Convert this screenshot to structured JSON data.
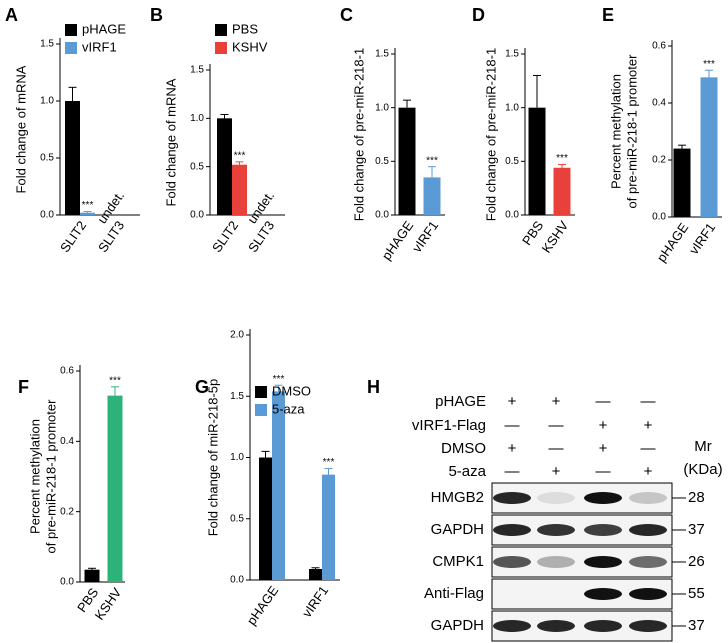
{
  "chart_data": [
    {
      "panel": "A",
      "type": "bar",
      "y_label": "Fold change of mRNA",
      "categories": [
        "SLIT2",
        "SLIT3"
      ],
      "series": [
        {
          "name": "pHAGE",
          "color": "#000000",
          "values": [
            1.0,
            null
          ],
          "errors": [
            0.12,
            null
          ]
        },
        {
          "name": "vIRF1",
          "color": "#5b9bd5",
          "values": [
            0.02,
            null
          ],
          "errors": [
            0.01,
            null
          ],
          "annotations": [
            "***",
            null
          ]
        }
      ],
      "category_annotations": [
        null,
        "undet."
      ],
      "ylim": [
        0,
        1.5
      ],
      "yticks": [
        {
          "value": 0,
          "label": "0.0"
        },
        {
          "value": 0.5,
          "label": "0.5"
        },
        {
          "value": 1,
          "label": "1.0"
        },
        {
          "value": 1.5,
          "label": "1.5"
        }
      ]
    },
    {
      "panel": "B",
      "type": "bar",
      "y_label": "Fold change of mRNA",
      "categories": [
        "SLIT2",
        "SLIT3"
      ],
      "series": [
        {
          "name": "PBS",
          "color": "#000000",
          "values": [
            1.0,
            null
          ],
          "errors": [
            0.04,
            null
          ]
        },
        {
          "name": "KSHV",
          "color": "#e8403a",
          "values": [
            0.52,
            null
          ],
          "errors": [
            0.03,
            null
          ],
          "annotations": [
            "***",
            null
          ]
        }
      ],
      "category_annotations": [
        null,
        "undet."
      ],
      "ylim": [
        0,
        1.5
      ],
      "yticks": [
        {
          "value": 0,
          "label": "0.0"
        },
        {
          "value": 0.5,
          "label": "0.5"
        },
        {
          "value": 1,
          "label": "1.0"
        },
        {
          "value": 1.5,
          "label": "1.5"
        }
      ]
    },
    {
      "panel": "C",
      "type": "bar",
      "y_label": "Fold change of pre-miR-218-1",
      "categories": [
        "pHAGE",
        "vIRF1"
      ],
      "values": [
        1.0,
        0.35
      ],
      "errors": [
        0.07,
        0.1
      ],
      "colors": [
        "#000000",
        "#5b9bd5"
      ],
      "annotations": [
        null,
        "***"
      ],
      "ylim": [
        0,
        1.5
      ],
      "yticks": [
        {
          "value": 0,
          "label": "0.0"
        },
        {
          "value": 0.5,
          "label": "0.5"
        },
        {
          "value": 1,
          "label": "1.0"
        },
        {
          "value": 1.5,
          "label": "1.5"
        }
      ]
    },
    {
      "panel": "D",
      "type": "bar",
      "y_label": "Fold change of pre-miR-218-1",
      "categories": [
        "PBS",
        "KSHV"
      ],
      "values": [
        1.0,
        0.44
      ],
      "errors": [
        0.3,
        0.03
      ],
      "colors": [
        "#000000",
        "#e8403a"
      ],
      "annotations": [
        null,
        "***"
      ],
      "ylim": [
        0,
        1.5
      ],
      "yticks": [
        {
          "value": 0,
          "label": "0.0"
        },
        {
          "value": 0.5,
          "label": "0.5"
        },
        {
          "value": 1,
          "label": "1.0"
        },
        {
          "value": 1.5,
          "label": "1.5"
        }
      ]
    },
    {
      "panel": "E",
      "type": "bar",
      "y_label": [
        "Percent methylation",
        "of pre-miR-218-1 promoter"
      ],
      "categories": [
        "pHAGE",
        "vIRF1"
      ],
      "values": [
        0.24,
        0.49
      ],
      "errors": [
        0.012,
        0.025
      ],
      "colors": [
        "#000000",
        "#5b9bd5"
      ],
      "annotations": [
        null,
        "***"
      ],
      "ylim": [
        0,
        0.6
      ],
      "yticks": [
        {
          "value": 0,
          "label": "0.0"
        },
        {
          "value": 0.2,
          "label": "0.2"
        },
        {
          "value": 0.4,
          "label": "0.4"
        },
        {
          "value": 0.6,
          "label": "0.6"
        }
      ]
    },
    {
      "panel": "F",
      "type": "bar",
      "y_label": [
        "Percent methylation",
        "of pre-miR-218-1 promoter"
      ],
      "categories": [
        "PBS",
        "KSHV"
      ],
      "values": [
        0.035,
        0.53
      ],
      "errors": [
        0.004,
        0.025
      ],
      "colors": [
        "#000000",
        "#2db37a"
      ],
      "annotations": [
        null,
        "***"
      ],
      "ylim": [
        0,
        0.6
      ],
      "yticks": [
        {
          "value": 0,
          "label": "0.0"
        },
        {
          "value": 0.2,
          "label": "0.2"
        },
        {
          "value": 0.4,
          "label": "0.4"
        },
        {
          "value": 0.6,
          "label": "0.6"
        }
      ]
    },
    {
      "panel": "G",
      "type": "bar",
      "y_label": "Fold change of miR-218-5p",
      "categories": [
        "pHAGE",
        "vIRF1"
      ],
      "series": [
        {
          "name": "DMSO",
          "color": "#000000",
          "values": [
            1.0,
            0.09
          ],
          "errors": [
            0.05,
            0.01
          ]
        },
        {
          "name": "5-aza",
          "color": "#5b9bd5",
          "values": [
            1.54,
            0.86
          ],
          "errors": [
            0.05,
            0.05
          ],
          "annotations": [
            "***",
            "***"
          ]
        }
      ],
      "ylim": [
        0,
        2
      ],
      "yticks": [
        {
          "value": 0,
          "label": "0.0"
        },
        {
          "value": 0.5,
          "label": "0.5"
        },
        {
          "value": 1,
          "label": "1.0"
        },
        {
          "value": 1.5,
          "label": "1.5"
        },
        {
          "value": 2,
          "label": "2.0"
        }
      ]
    }
  ],
  "blot": {
    "panel": "H",
    "conditions": [
      {
        "label": "pHAGE",
        "signs": [
          "+",
          "+",
          "—",
          "—"
        ]
      },
      {
        "label": "vIRF1-Flag",
        "signs": [
          "—",
          "—",
          "+",
          "+"
        ]
      },
      {
        "label": "DMSO",
        "signs": [
          "+",
          "—",
          "+",
          "—"
        ]
      },
      {
        "label": "5-aza",
        "signs": [
          "—",
          "+",
          "—",
          "+"
        ]
      }
    ],
    "mr_label": [
      "Mr",
      "(KDa)"
    ],
    "rows": [
      {
        "label": "HMGB2",
        "mr": 28
      },
      {
        "label": "GAPDH",
        "mr": 37
      },
      {
        "label": "CMPK1",
        "mr": 26
      },
      {
        "label": "Anti-Flag",
        "mr": 55
      },
      {
        "label": "GAPDH",
        "mr": 37
      }
    ]
  }
}
